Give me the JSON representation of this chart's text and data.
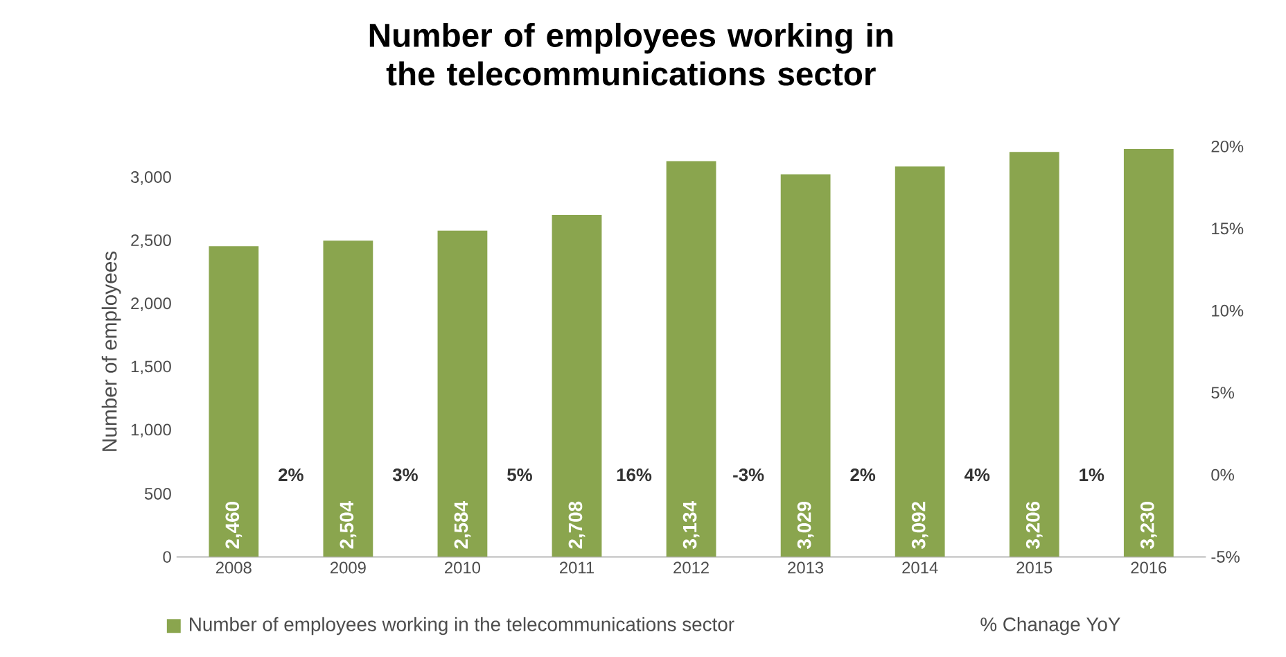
{
  "chart_data": {
    "type": "bar",
    "title": "Number of employees working in the telecommunications sector",
    "ylabel": "Number of employees",
    "categories": [
      "2008",
      "2009",
      "2010",
      "2011",
      "2012",
      "2013",
      "2014",
      "2015",
      "2016"
    ],
    "series": [
      {
        "name": "Number of employees working in the telecommunications sector",
        "color": "#8aa54e",
        "values": [
          2460,
          2504,
          2584,
          2708,
          3134,
          3029,
          3092,
          3206,
          3230
        ],
        "value_labels": [
          "2,460",
          "2,504",
          "2,584",
          "2,708",
          "3,134",
          "3,029",
          "3,092",
          "3,206",
          "3,230"
        ]
      }
    ],
    "ylim": [
      0,
      3250
    ],
    "yticks": [
      0,
      {
        "value": 500,
        "label": "500"
      },
      {
        "value": 1000,
        "label": "1,000"
      },
      {
        "value": 1500,
        "label": "1,500"
      },
      {
        "value": 2000,
        "label": "2,000"
      },
      {
        "value": 2500,
        "label": "2,500"
      },
      {
        "value": 3000,
        "label": "3,000"
      }
    ],
    "y2lim": [
      -5,
      20
    ],
    "y2ticks": [
      {
        "value": -5,
        "label": "-5%"
      },
      {
        "value": 0,
        "label": "0%"
      },
      {
        "value": 5,
        "label": "5%"
      },
      {
        "value": 10,
        "label": "10%"
      },
      {
        "value": 15,
        "label": "15%"
      },
      {
        "value": 20,
        "label": "20%"
      }
    ],
    "annotations": [
      "2%",
      "3%",
      "5%",
      "16%",
      "-3%",
      "2%",
      "4%",
      "1%",
      "% Chanage  YoY"
    ],
    "legend": "bottom",
    "grid": false
  }
}
